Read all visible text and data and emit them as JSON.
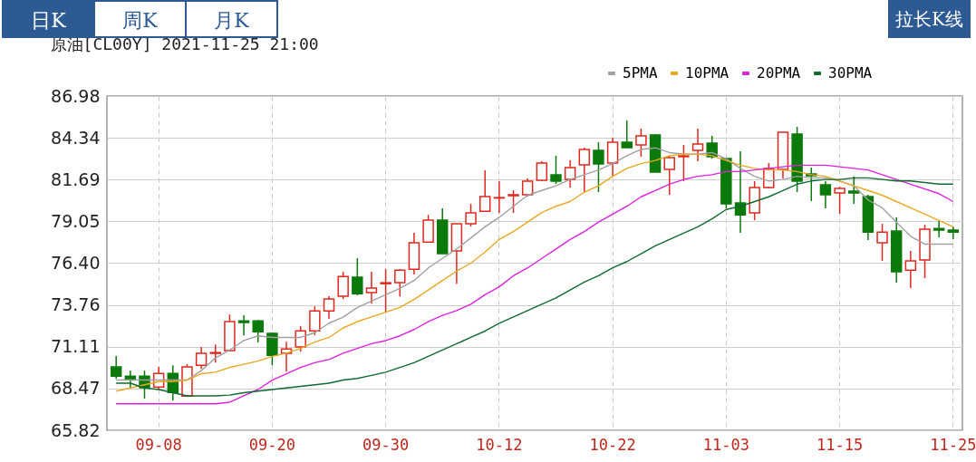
{
  "chart_data": {
    "type": "candlestick",
    "title": "原油[CL00Y] 2021-11-25 21:00",
    "annotations": [
      "日K",
      "周K",
      "月K",
      "拉长K线"
    ],
    "categories": [
      null,
      null,
      null,
      "09-08",
      null,
      null,
      null,
      null,
      null,
      null,
      null,
      "09-20",
      null,
      null,
      null,
      null,
      null,
      null,
      null,
      "09-30",
      null,
      null,
      null,
      null,
      null,
      null,
      null,
      "10-12",
      null,
      null,
      null,
      null,
      null,
      null,
      null,
      "10-22",
      null,
      null,
      null,
      null,
      null,
      null,
      null,
      "11-03",
      null,
      null,
      null,
      null,
      null,
      null,
      null,
      "11-15",
      null,
      null,
      null,
      null,
      null,
      null,
      null,
      "11-25"
    ],
    "ohlc": [
      [
        69.83,
        70.52,
        69.08,
        69.25
      ],
      [
        69.25,
        69.6,
        68.51,
        69.08
      ],
      [
        69.25,
        69.6,
        67.82,
        68.51
      ],
      [
        68.56,
        69.83,
        68.39,
        69.42
      ],
      [
        69.42,
        69.94,
        67.7,
        68.22
      ],
      [
        67.99,
        70.0,
        67.93,
        69.83
      ],
      [
        69.94,
        71.09,
        69.71,
        70.69
      ],
      [
        70.69,
        71.26,
        70.11,
        70.74
      ],
      [
        70.86,
        73.15,
        70.8,
        72.7
      ],
      [
        72.75,
        73.1,
        71.83,
        72.64
      ],
      [
        72.75,
        72.81,
        71.38,
        72.06
      ],
      [
        71.95,
        72.01,
        69.94,
        70.57
      ],
      [
        70.69,
        71.43,
        69.54,
        70.97
      ],
      [
        71.09,
        72.41,
        70.8,
        72.12
      ],
      [
        72.12,
        73.67,
        71.83,
        73.38
      ],
      [
        73.38,
        74.3,
        72.87,
        74.13
      ],
      [
        74.3,
        75.85,
        74.13,
        75.56
      ],
      [
        75.51,
        76.71,
        74.36,
        74.47
      ],
      [
        74.53,
        75.85,
        73.84,
        74.82
      ],
      [
        75.1,
        76.02,
        73.27,
        75.16
      ],
      [
        75.16,
        76.02,
        74.3,
        75.96
      ],
      [
        76.02,
        78.32,
        75.68,
        77.69
      ],
      [
        77.74,
        79.46,
        77.69,
        79.12
      ],
      [
        79.12,
        79.87,
        77.0,
        77.0
      ],
      [
        77.17,
        78.89,
        75.1,
        78.89
      ],
      [
        78.89,
        80.15,
        78.72,
        79.58
      ],
      [
        79.69,
        82.28,
        79.69,
        80.61
      ],
      [
        80.52,
        81.59,
        79.58,
        80.55
      ],
      [
        80.67,
        81.01,
        79.58,
        80.73
      ],
      [
        80.73,
        81.76,
        80.61,
        81.59
      ],
      [
        81.64,
        82.85,
        81.59,
        82.73
      ],
      [
        81.99,
        83.19,
        81.42,
        81.59
      ],
      [
        81.7,
        82.91,
        81.19,
        82.45
      ],
      [
        82.62,
        83.71,
        80.9,
        83.6
      ],
      [
        83.54,
        84.05,
        80.9,
        82.68
      ],
      [
        82.73,
        84.34,
        81.87,
        84.05
      ],
      [
        84.05,
        85.43,
        83.71,
        83.71
      ],
      [
        83.88,
        84.92,
        83.14,
        84.46
      ],
      [
        84.51,
        84.57,
        82.16,
        82.16
      ],
      [
        82.33,
        83.19,
        80.73,
        83.08
      ],
      [
        83.14,
        83.88,
        81.59,
        83.19
      ],
      [
        83.54,
        84.92,
        82.85,
        83.94
      ],
      [
        84.0,
        84.46,
        83.02,
        83.14
      ],
      [
        83.02,
        83.02,
        79.87,
        80.15
      ],
      [
        80.21,
        83.48,
        78.32,
        79.46
      ],
      [
        79.58,
        81.59,
        79.12,
        81.19
      ],
      [
        81.19,
        82.73,
        81.13,
        82.39
      ],
      [
        82.33,
        84.69,
        81.76,
        84.69
      ],
      [
        84.57,
        85.03,
        80.9,
        81.59
      ],
      [
        82.05,
        82.45,
        80.33,
        81.93
      ],
      [
        81.36,
        81.59,
        79.87,
        80.73
      ],
      [
        80.84,
        81.24,
        79.52,
        81.13
      ],
      [
        80.96,
        81.87,
        80.15,
        80.84
      ],
      [
        80.61,
        80.73,
        77.86,
        78.37
      ],
      [
        77.69,
        78.89,
        76.54,
        78.37
      ],
      [
        78.43,
        79.29,
        75.16,
        75.85
      ],
      [
        75.96,
        77.17,
        74.82,
        76.54
      ],
      [
        76.6,
        78.83,
        75.45,
        78.55
      ],
      [
        78.6,
        79.12,
        78.03,
        78.49
      ],
      [
        78.49,
        78.72,
        77.92,
        78.37
      ]
    ],
    "colors": [
      "#0b7a0b",
      "#0b7a0b",
      "#0b7a0b",
      "#e0281e",
      "#0b7a0b",
      "#e0281e",
      "#e0281e",
      "#e0281e",
      "#e0281e",
      "#0b7a0b",
      "#0b7a0b",
      "#0b7a0b",
      "#e0281e",
      "#e0281e",
      "#e0281e",
      "#e0281e",
      "#e0281e",
      "#0b7a0b",
      "#e0281e",
      "#e0281e",
      "#e0281e",
      "#e0281e",
      "#e0281e",
      "#0b7a0b",
      "#e0281e",
      "#e0281e",
      "#e0281e",
      "#e0281e",
      "#e0281e",
      "#e0281e",
      "#e0281e",
      "#0b7a0b",
      "#e0281e",
      "#e0281e",
      "#0b7a0b",
      "#e0281e",
      "#0b7a0b",
      "#e0281e",
      "#0b7a0b",
      "#e0281e",
      "#e0281e",
      "#e0281e",
      "#0b7a0b",
      "#0b7a0b",
      "#0b7a0b",
      "#e0281e",
      "#e0281e",
      "#e0281e",
      "#0b7a0b",
      "#0b7a0b",
      "#0b7a0b",
      "#e0281e",
      "#0b7a0b",
      "#0b7a0b",
      "#e0281e",
      "#0b7a0b",
      "#e0281e",
      "#e0281e",
      "#0b7a0b",
      "#0b7a0b"
    ],
    "series": [
      {
        "name": "5PMA",
        "type": "line",
        "color": "#a0a0a0",
        "values": [
          69.0,
          69.0,
          69.0,
          69.0,
          69.0,
          69.0,
          69.6,
          70.4,
          70.9,
          71.5,
          71.8,
          71.7,
          71.7,
          71.7,
          72.0,
          72.6,
          72.98,
          73.6,
          74.0,
          74.4,
          74.8,
          75.3,
          76.1,
          76.7,
          77.3,
          78.0,
          78.7,
          79.3,
          80.0,
          80.7,
          81.0,
          81.3,
          81.7,
          82.0,
          82.3,
          82.7,
          83.2,
          83.6,
          83.7,
          83.4,
          83.3,
          83.3,
          83.4,
          83.0,
          82.4,
          81.9,
          81.6,
          81.7,
          81.9,
          81.8,
          81.8,
          81.6,
          81.3,
          80.4,
          79.9,
          79.0,
          78.1,
          77.6,
          77.6,
          77.6
        ]
      },
      {
        "name": "10PMA",
        "type": "line",
        "color": "#e8a820",
        "values": [
          68.3,
          68.5,
          68.7,
          68.9,
          68.9,
          69.0,
          69.4,
          69.5,
          69.8,
          70.0,
          70.2,
          70.5,
          70.7,
          71.0,
          71.4,
          71.7,
          72.3,
          72.7,
          73.0,
          73.3,
          73.6,
          74.1,
          74.7,
          75.3,
          75.9,
          76.4,
          77.1,
          77.9,
          78.4,
          79.0,
          79.6,
          80.0,
          80.3,
          80.9,
          81.3,
          81.9,
          82.4,
          82.7,
          82.9,
          83.2,
          83.3,
          83.3,
          83.2,
          82.9,
          82.6,
          82.4,
          82.3,
          82.3,
          82.2,
          82.0,
          81.9,
          81.6,
          81.3,
          81.0,
          80.7,
          80.3,
          79.9,
          79.5,
          79.1,
          78.7
        ]
      },
      {
        "name": "20PMA",
        "type": "line",
        "color": "#e020e0",
        "values": [
          67.5,
          67.5,
          67.5,
          67.5,
          67.5,
          67.5,
          67.5,
          67.5,
          67.6,
          68.0,
          68.4,
          69.0,
          69.4,
          69.8,
          70.1,
          70.3,
          70.7,
          71.0,
          71.3,
          71.5,
          71.8,
          72.2,
          72.7,
          73.1,
          73.4,
          73.8,
          74.4,
          74.9,
          75.6,
          76.1,
          76.7,
          77.3,
          77.9,
          78.4,
          79.0,
          79.5,
          80.0,
          80.6,
          81.0,
          81.4,
          81.7,
          81.9,
          82.0,
          82.2,
          82.2,
          82.3,
          82.4,
          82.5,
          82.6,
          82.6,
          82.6,
          82.5,
          82.4,
          82.3,
          82.0,
          81.7,
          81.4,
          81.1,
          80.8,
          80.3
        ]
      },
      {
        "name": "30PMA",
        "type": "line",
        "color": "#106a30",
        "values": [
          68.8,
          68.8,
          68.5,
          68.4,
          68.2,
          68.0,
          68.0,
          68.0,
          68.05,
          68.2,
          68.3,
          68.4,
          68.5,
          68.6,
          68.7,
          68.8,
          69.0,
          69.1,
          69.3,
          69.5,
          69.8,
          70.1,
          70.5,
          70.9,
          71.3,
          71.7,
          72.1,
          72.6,
          73.0,
          73.4,
          73.8,
          74.2,
          74.7,
          75.2,
          75.6,
          76.1,
          76.5,
          77.0,
          77.5,
          77.9,
          78.3,
          78.7,
          79.2,
          79.8,
          80.0,
          80.3,
          80.6,
          81.0,
          81.4,
          81.6,
          81.7,
          81.7,
          81.8,
          81.8,
          81.7,
          81.6,
          81.6,
          81.5,
          81.4,
          81.4
        ]
      }
    ],
    "ylim": [
      65.82,
      86.98
    ],
    "yticks": [
      65.82,
      68.47,
      71.11,
      73.76,
      {
        "value": 76.4,
        "label": "76.40"
      },
      79.05,
      81.69,
      84.34,
      86.98
    ],
    "grid": true,
    "legend": "top right"
  }
}
